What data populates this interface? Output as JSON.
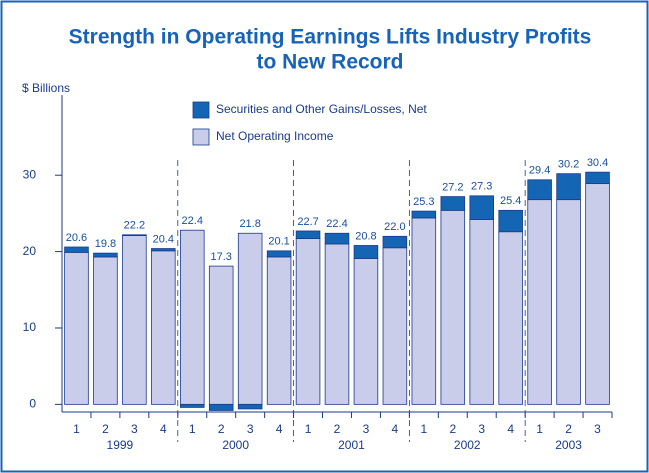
{
  "chart_data": {
    "type": "stacked_bar",
    "title": [
      "Strength in Operating Earnings Lifts Industry Profits",
      "to New Record"
    ],
    "y_axis_label": "$ Billions",
    "groups": [
      {
        "name": "1999",
        "categories": [
          "1",
          "2",
          "3",
          "4"
        ]
      },
      {
        "name": "2000",
        "categories": [
          "1",
          "2",
          "3",
          "4"
        ]
      },
      {
        "name": "2001",
        "categories": [
          "1",
          "2",
          "3",
          "4"
        ]
      },
      {
        "name": "2002",
        "categories": [
          "1",
          "2",
          "3",
          "4"
        ]
      },
      {
        "name": "2003",
        "categories": [
          "1",
          "2",
          "3"
        ]
      }
    ],
    "series": [
      {
        "name": "Net Operating Income",
        "color": "#c9cdea",
        "values": [
          19.9,
          19.3,
          22.1,
          20.1,
          22.8,
          18.1,
          22.4,
          19.3,
          21.7,
          21.0,
          19.1,
          20.5,
          24.4,
          25.4,
          24.2,
          22.6,
          26.8,
          26.8,
          28.9
        ]
      },
      {
        "name": "Securities and Other Gains/Losses, Net",
        "color": "#1565b5",
        "values": [
          0.7,
          0.5,
          0.1,
          0.3,
          -0.4,
          -0.8,
          -0.6,
          0.8,
          1.0,
          1.4,
          1.7,
          1.5,
          0.9,
          1.8,
          3.1,
          2.8,
          2.6,
          3.4,
          1.5
        ]
      }
    ],
    "totals": [
      20.6,
      19.8,
      22.2,
      20.4,
      22.4,
      17.3,
      21.8,
      20.1,
      22.7,
      22.4,
      20.8,
      22.0,
      25.3,
      27.2,
      27.3,
      25.4,
      29.4,
      30.2,
      30.4
    ],
    "total_labels": [
      "20.6",
      "19.8",
      "22.2",
      "20.4",
      "22.4",
      "17.3",
      "21.8",
      "20.1",
      "22.7",
      "22.4",
      "20.8",
      "22.0",
      "25.3",
      "27.2",
      "27.3",
      "25.4",
      "29.4",
      "30.2",
      "30.4"
    ],
    "ylim": [
      -1,
      40.5
    ],
    "yticks": [
      0,
      10,
      20,
      30
    ]
  }
}
